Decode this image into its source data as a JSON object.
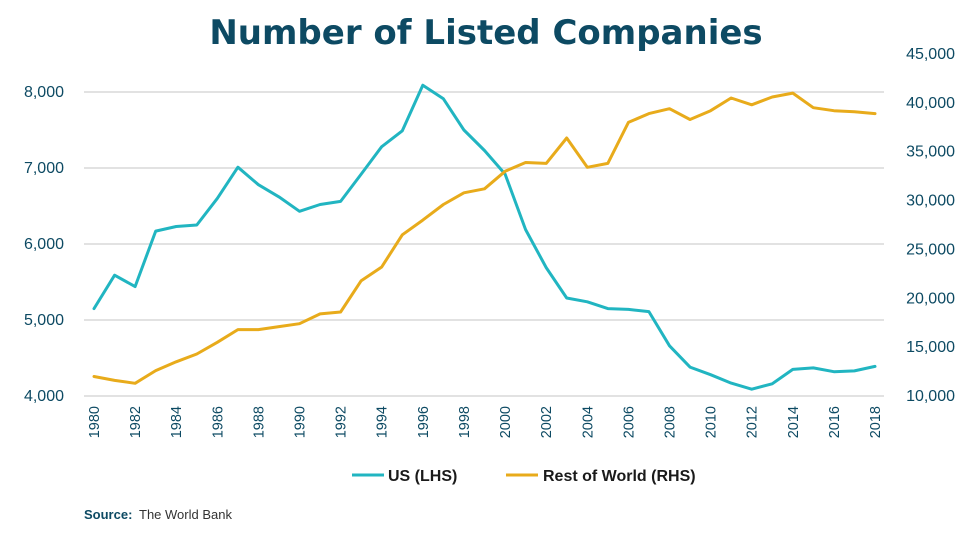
{
  "chart_data": {
    "type": "line",
    "title": "Number of Listed Companies",
    "x": [
      1980,
      1981,
      1982,
      1983,
      1984,
      1985,
      1986,
      1987,
      1988,
      1989,
      1990,
      1991,
      1992,
      1993,
      1994,
      1995,
      1996,
      1997,
      1998,
      1999,
      2000,
      2001,
      2002,
      2003,
      2004,
      2005,
      2006,
      2007,
      2008,
      2009,
      2010,
      2011,
      2012,
      2013,
      2014,
      2015,
      2016,
      2017,
      2018
    ],
    "x_tick_labels": [
      "1980",
      "1982",
      "1984",
      "1986",
      "1988",
      "1990",
      "1992",
      "1994",
      "1996",
      "1998",
      "2000",
      "2002",
      "2004",
      "2006",
      "2008",
      "2010",
      "2012",
      "2014",
      "2016",
      "2018"
    ],
    "y_left": {
      "ylim": [
        4000,
        8000
      ],
      "ticks": [
        "4,000",
        "5,000",
        "6,000",
        "7,000",
        "8,000"
      ]
    },
    "y_right": {
      "ylim": [
        10000,
        45000
      ],
      "ticks": [
        "10,000",
        "15,000",
        "20,000",
        "25,000",
        "30,000",
        "35,000",
        "40,000",
        "45,000"
      ]
    },
    "series": [
      {
        "name": "US (LHS)",
        "axis": "left",
        "color": "#21b5c1",
        "values": [
          5150,
          5590,
          5440,
          6170,
          6230,
          6250,
          6600,
          7010,
          6780,
          6620,
          6430,
          6520,
          6560,
          6920,
          7280,
          7490,
          8090,
          7910,
          7500,
          7230,
          6920,
          6190,
          5690,
          5290,
          5240,
          5150,
          5140,
          5110,
          4660,
          4380,
          4280,
          4170,
          4090,
          4160,
          4350,
          4370,
          4320,
          4330,
          4390
        ]
      },
      {
        "name": "Rest of World (RHS)",
        "axis": "right",
        "color": "#e8ab1b",
        "values": [
          12000,
          11600,
          11300,
          12600,
          13500,
          14300,
          15500,
          16800,
          16800,
          17100,
          17400,
          18400,
          18600,
          21800,
          23200,
          26500,
          28000,
          29600,
          30800,
          31200,
          33000,
          33900,
          33800,
          36400,
          33400,
          33800,
          38000,
          38900,
          39400,
          38300,
          39200,
          40500,
          39800,
          40600,
          41000,
          39500,
          39200,
          39100,
          38900
        ]
      }
    ],
    "legend": [
      "US (LHS)",
      "Rest of World (RHS)"
    ],
    "legend_position": "bottom"
  },
  "source": {
    "label": "Source:",
    "text": "The World Bank"
  }
}
